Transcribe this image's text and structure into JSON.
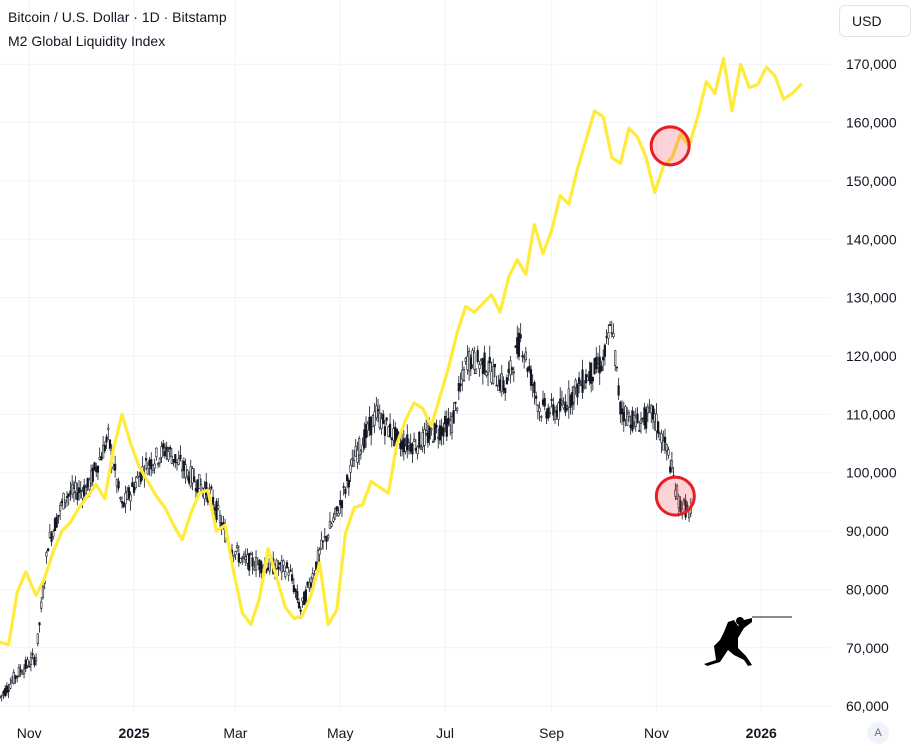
{
  "legend": {
    "main_series": "Bitcoin / U.S. Dollar · 1D · Bitstamp",
    "overlay_series": "M2 Global Liquidity Index"
  },
  "currency_button": "USD",
  "auto_scale_button": "A",
  "colors": {
    "btc": "#131722",
    "m2": "#ffeb3b",
    "grid": "#f0f3fa",
    "highlight_stroke": "#e91e24",
    "highlight_fill": "rgba(242,54,69,0.22)"
  },
  "chart_data": {
    "type": "line",
    "y_axis": {
      "ticks": [
        60000,
        70000,
        80000,
        90000,
        100000,
        110000,
        120000,
        130000,
        140000,
        150000,
        160000,
        170000
      ],
      "tick_labels": [
        "60,000",
        "70,000",
        "80,000",
        "90,000",
        "100,000",
        "110,000",
        "120,000",
        "130,000",
        "140,000",
        "150,000",
        "160,000",
        "170,000"
      ],
      "range": [
        59000,
        181000
      ]
    },
    "x_axis": {
      "range": [
        "2024-10-15",
        "2026-02-10"
      ],
      "ticks": [
        {
          "date": "2024-11-01",
          "label": "Nov",
          "bold": false
        },
        {
          "date": "2025-01-01",
          "label": "2025",
          "bold": true
        },
        {
          "date": "2025-03-01",
          "label": "Mar",
          "bold": false
        },
        {
          "date": "2025-05-01",
          "label": "May",
          "bold": false
        },
        {
          "date": "2025-07-01",
          "label": "Jul",
          "bold": false
        },
        {
          "date": "2025-09-01",
          "label": "Sep",
          "bold": false
        },
        {
          "date": "2025-11-01",
          "label": "Nov",
          "bold": false
        },
        {
          "date": "2026-01-01",
          "label": "2026",
          "bold": true
        }
      ]
    },
    "grid": true,
    "series": [
      {
        "style": "candles",
        "x": [
          "2024-10-15",
          "2024-10-25",
          "2024-11-05",
          "2024-11-12",
          "2024-11-22",
          "2024-12-05",
          "2024-12-17",
          "2024-12-25",
          "2025-01-07",
          "2025-01-20",
          "2025-02-01",
          "2025-02-15",
          "2025-02-25",
          "2025-03-05",
          "2025-03-20",
          "2025-04-01",
          "2025-04-08",
          "2025-04-20",
          "2025-05-01",
          "2025-05-10",
          "2025-05-22",
          "2025-06-05",
          "2025-06-15",
          "2025-06-25",
          "2025-07-05",
          "2025-07-14",
          "2025-07-25",
          "2025-08-05",
          "2025-08-14",
          "2025-08-25",
          "2025-09-05",
          "2025-09-20",
          "2025-10-01",
          "2025-10-06",
          "2025-10-11",
          "2025-10-20",
          "2025-10-30",
          "2025-11-08",
          "2025-11-14",
          "2025-11-21"
        ],
        "values": [
          61500,
          65500,
          68500,
          88000,
          96000,
          97500,
          106000,
          94000,
          101000,
          104000,
          100000,
          96000,
          88000,
          85000,
          84000,
          83500,
          76500,
          87000,
          94500,
          103000,
          110000,
          105000,
          105000,
          107000,
          108500,
          119500,
          118500,
          114500,
          123000,
          111000,
          110500,
          116000,
          119000,
          125500,
          111000,
          108500,
          110000,
          103000,
          95000,
          93000
        ]
      },
      {
        "style": "line",
        "x": [
          "2024-10-15",
          "2024-10-20",
          "2024-10-25",
          "2024-10-30",
          "2024-11-05",
          "2024-11-10",
          "2024-11-15",
          "2024-11-20",
          "2024-11-25",
          "2024-11-30",
          "2024-12-05",
          "2024-12-10",
          "2024-12-15",
          "2024-12-20",
          "2024-12-25",
          "2024-12-30",
          "2025-01-04",
          "2025-01-09",
          "2025-01-14",
          "2025-01-19",
          "2025-01-24",
          "2025-01-29",
          "2025-02-03",
          "2025-02-08",
          "2025-02-13",
          "2025-02-18",
          "2025-02-23",
          "2025-02-28",
          "2025-03-05",
          "2025-03-10",
          "2025-03-15",
          "2025-03-20",
          "2025-03-25",
          "2025-03-30",
          "2025-04-04",
          "2025-04-09",
          "2025-04-14",
          "2025-04-19",
          "2025-04-24",
          "2025-04-29",
          "2025-05-04",
          "2025-05-09",
          "2025-05-14",
          "2025-05-19",
          "2025-05-24",
          "2025-05-29",
          "2025-06-03",
          "2025-06-08",
          "2025-06-13",
          "2025-06-18",
          "2025-06-23",
          "2025-06-28",
          "2025-07-03",
          "2025-07-08",
          "2025-07-13",
          "2025-07-18",
          "2025-07-23",
          "2025-07-28",
          "2025-08-02",
          "2025-08-07",
          "2025-08-12",
          "2025-08-17",
          "2025-08-22",
          "2025-08-27",
          "2025-09-01",
          "2025-09-06",
          "2025-09-11",
          "2025-09-16",
          "2025-09-21",
          "2025-09-26",
          "2025-10-01",
          "2025-10-06",
          "2025-10-11",
          "2025-10-16",
          "2025-10-21",
          "2025-10-26",
          "2025-10-31",
          "2025-11-05",
          "2025-11-10",
          "2025-11-15",
          "2025-11-20",
          "2025-11-25",
          "2025-11-30",
          "2025-12-05",
          "2025-12-10",
          "2025-12-15",
          "2025-12-20",
          "2025-12-25",
          "2025-12-30",
          "2026-01-04",
          "2026-01-09",
          "2026-01-14",
          "2026-01-19",
          "2026-01-24"
        ],
        "values": [
          71000,
          70500,
          79500,
          83000,
          79000,
          82000,
          86500,
          90000,
          91500,
          94000,
          96000,
          98000,
          95500,
          104000,
          110000,
          105000,
          101000,
          98500,
          96000,
          94000,
          91000,
          88500,
          93000,
          96500,
          97000,
          90000,
          91000,
          83000,
          76000,
          74000,
          78500,
          87000,
          82000,
          77000,
          75000,
          75500,
          79000,
          84500,
          74000,
          76500,
          89500,
          94000,
          94500,
          98500,
          97500,
          96500,
          105000,
          109000,
          112000,
          111000,
          108000,
          113000,
          118000,
          124000,
          128500,
          127500,
          129000,
          130500,
          127500,
          133500,
          136500,
          134000,
          142500,
          137500,
          141500,
          147500,
          146000,
          152000,
          157000,
          162000,
          161000,
          154000,
          153000,
          159000,
          157500,
          154000,
          148000,
          152500,
          154000,
          158000,
          156000,
          161000,
          167000,
          165000,
          171000,
          162000,
          170000,
          166000,
          166500,
          169500,
          168000,
          164000,
          165000,
          166500
        ]
      }
    ],
    "annotations": [
      {
        "type": "circle",
        "x": "2025-11-09",
        "y": 156000
      },
      {
        "type": "circle",
        "x": "2025-11-12",
        "y": 96000
      }
    ]
  }
}
